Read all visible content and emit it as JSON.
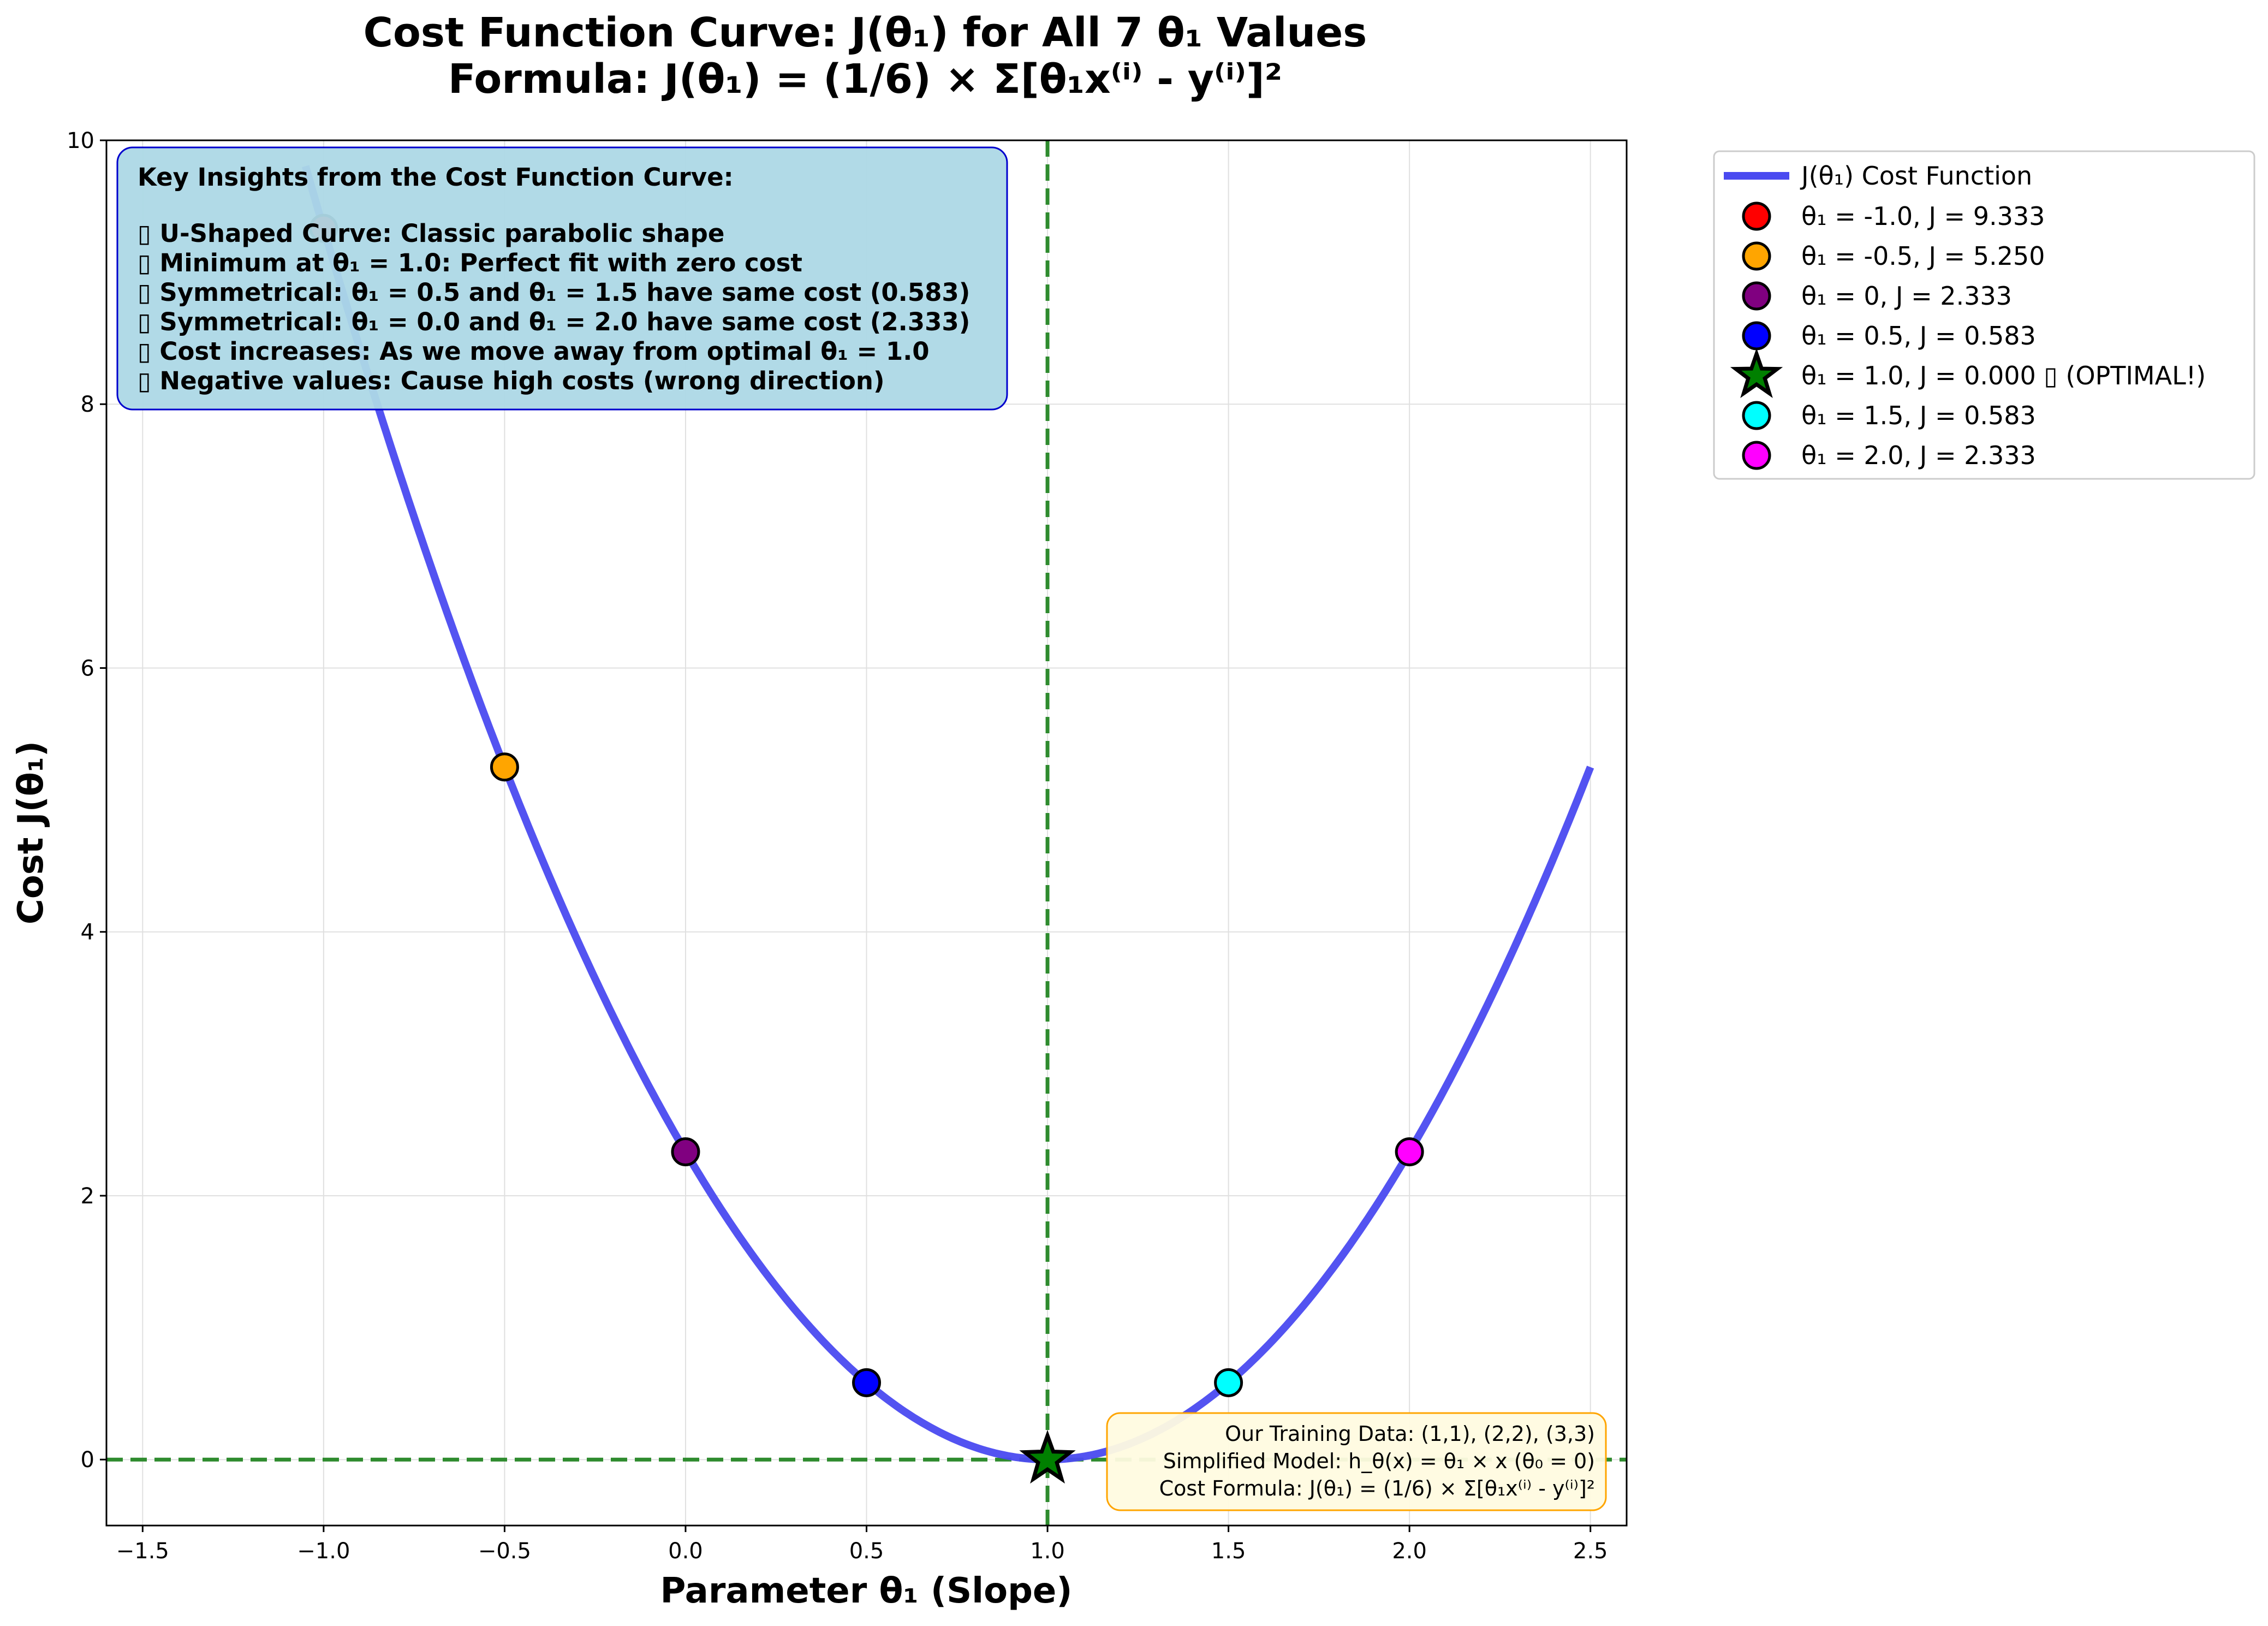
{
  "chart_data": {
    "type": "line",
    "title_line1": "Cost Function Curve: J(θ₁) for All 7 θ₁ Values",
    "title_line2": "Formula: J(θ₁) = (1/6) × Σ[θ₁x⁽ⁱ⁾ - y⁽ⁱ⁾]²",
    "xlabel": "Parameter θ₁ (Slope)",
    "ylabel": "Cost J(θ₁)",
    "xlim": [
      -1.6,
      2.6
    ],
    "ylim": [
      -0.5,
      10
    ],
    "xticks": [
      -1.5,
      -1.0,
      -0.5,
      0.0,
      0.5,
      1.0,
      1.5,
      2.0,
      2.5
    ],
    "xtick_labels": [
      "−1.5",
      "−1.0",
      "−0.5",
      "0.0",
      "0.5",
      "1.0",
      "1.5",
      "2.0",
      "2.5"
    ],
    "yticks": [
      0,
      2,
      4,
      6,
      8,
      10
    ],
    "ytick_labels": [
      "0",
      "2",
      "4",
      "6",
      "8",
      "10"
    ],
    "grid": true,
    "legend_position": "outside-right-top",
    "curve": {
      "name": "J(θ₁) Cost Function",
      "color": "#4a4af0",
      "x_range": [
        -1.05,
        2.5
      ],
      "coefficient": 2.333,
      "vertex_x": 1.0
    },
    "points": [
      {
        "x": -1.0,
        "y": 9.333,
        "color": "#ff0000",
        "marker": "circle",
        "label": "θ₁ = -1.0, J = 9.333"
      },
      {
        "x": -0.5,
        "y": 5.25,
        "color": "#ffa500",
        "marker": "circle",
        "label": "θ₁ = -0.5, J = 5.250"
      },
      {
        "x": 0.0,
        "y": 2.333,
        "color": "#800080",
        "marker": "circle",
        "label": "θ₁ = 0, J = 2.333"
      },
      {
        "x": 0.5,
        "y": 0.583,
        "color": "#0000ff",
        "marker": "circle",
        "label": "θ₁ = 0.5, J = 0.583"
      },
      {
        "x": 1.0,
        "y": 0.0,
        "color": "#008000",
        "marker": "star",
        "label": "θ₁ = 1.0, J = 0.000 ▯ (OPTIMAL!)"
      },
      {
        "x": 1.5,
        "y": 0.583,
        "color": "#00ffff",
        "marker": "circle",
        "label": "θ₁ = 1.5, J = 0.583"
      },
      {
        "x": 2.0,
        "y": 2.333,
        "color": "#ff00ff",
        "marker": "circle",
        "label": "θ₁ = 2.0, J = 2.333"
      }
    ],
    "reference_lines": [
      {
        "orientation": "vertical",
        "value": 1.0,
        "color": "#2e8b2e",
        "style": "dashed"
      },
      {
        "orientation": "horizontal",
        "value": 0.0,
        "color": "#2e8b2e",
        "style": "dashed"
      }
    ],
    "insights": {
      "heading": "Key Insights from the Cost Function Curve:",
      "lines": [
        "▯ U-Shaped Curve: Classic parabolic shape",
        "▯ Minimum at θ₁ = 1.0: Perfect fit with zero cost",
        "▯ Symmetrical: θ₁ = 0.5 and θ₁ = 1.5 have same cost (0.583)",
        "▯ Symmetrical: θ₁ = 0.0 and θ₁ = 2.0 have same cost (2.333)",
        "▯ Cost increases: As we move away from optimal θ₁ = 1.0",
        "▯ Negative values: Cause high costs (wrong direction)"
      ]
    },
    "info_box": {
      "lines": [
        "Our Training Data: (1,1), (2,2), (3,3)",
        "Simplified Model: h_θ(x) = θ₁ × x (θ₀ = 0)",
        "Cost Formula: J(θ₁) = (1/6) × Σ[θ₁x⁽ⁱ⁾ - y⁽ⁱ⁾]²"
      ]
    }
  }
}
